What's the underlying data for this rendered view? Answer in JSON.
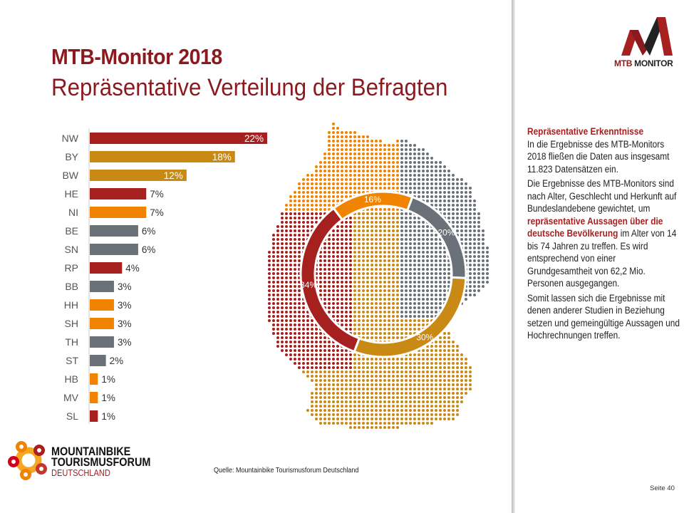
{
  "header": {
    "title": "MTB-Monitor 2018",
    "subtitle": "Repräsentative Verteilung der Befragten"
  },
  "logo_top": {
    "text_a": "MTB",
    "text_b": " MONITOR"
  },
  "logo_bottom": {
    "line1": "MOUNTAINBIKE",
    "line2": "TOURISMUSFORUM",
    "line3": "DEUTSCHLAND"
  },
  "colors": {
    "red": "#a6201f",
    "gold": "#c88a14",
    "orange": "#f08400",
    "gray": "#6b7178",
    "title": "#8b1a1f"
  },
  "chart_data": [
    {
      "type": "bar",
      "orientation": "horizontal",
      "categories": [
        "NW",
        "BY",
        "BW",
        "HE",
        "NI",
        "BE",
        "SN",
        "RP",
        "BB",
        "HH",
        "SH",
        "TH",
        "ST",
        "HB",
        "MV",
        "SL"
      ],
      "values": [
        22,
        18,
        12,
        7,
        7,
        6,
        6,
        4,
        3,
        3,
        3,
        3,
        2,
        1,
        1,
        1
      ],
      "labels": [
        "22%",
        "18%",
        "12%",
        "7%",
        "7%",
        "6%",
        "6%",
        "4%",
        "3%",
        "3%",
        "3%",
        "3%",
        "2%",
        "1%",
        "1%",
        "1%"
      ],
      "bar_colors": [
        "red",
        "gold",
        "gold",
        "red",
        "orange",
        "gray",
        "gray",
        "red",
        "gray",
        "orange",
        "orange",
        "gray",
        "gray",
        "orange",
        "orange",
        "red"
      ]
    },
    {
      "type": "pie",
      "donut": true,
      "values": [
        16,
        20,
        30,
        34
      ],
      "labels": [
        "16%",
        "20%",
        "30%",
        "34%"
      ],
      "slice_colors": [
        "orange",
        "gray",
        "gold",
        "red"
      ]
    }
  ],
  "sidebar": {
    "heading": "Repräsentative Erkenntnisse",
    "p1": "In die Ergebnisse des MTB-Monitors 2018 fließen die Daten aus insgesamt 11.823 Datensätzen ein.",
    "p2a": "Die Ergebnisse des MTB-Monitors sind nach Alter, Geschlecht und Herkunft auf Bundeslandebene gewichtet, um ",
    "p2b": "repräsentative Aussagen über die deutsche Bevölkerung",
    "p2c": " im Alter von 14 bis 74 Jahren zu treffen. Es wird entsprechend von einer Grundgesamtheit von 62,2 Mio. Personen ausgegangen.",
    "p3": "Somit lassen sich die Ergebnisse mit denen anderer Studien in Beziehung setzen und gemeingültige Aussagen und Hochrechnungen treffen."
  },
  "footer": {
    "source": "Quelle: Mountainbike Tourismusforum Deutschland",
    "page": "Seite 40"
  }
}
